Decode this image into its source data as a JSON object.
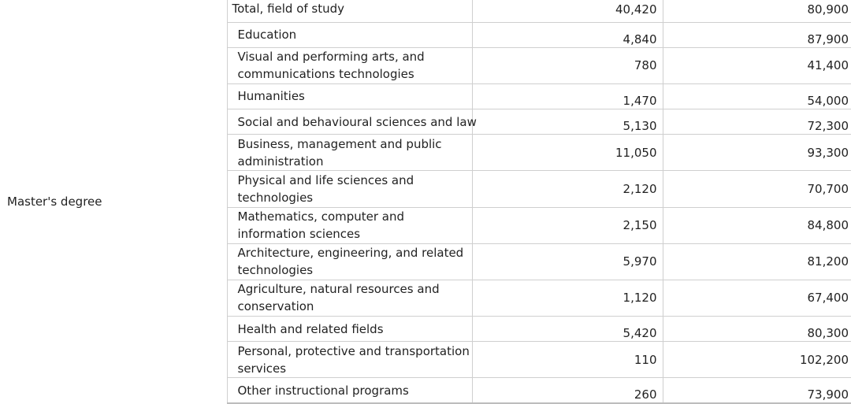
{
  "degree_label": "Master's degree",
  "rows": [
    {
      "field": "Total, field of study",
      "graduates": "40,420",
      "median_income": "80,900"
    },
    {
      "field": "Education",
      "graduates": "4,840",
      "median_income": "87,900"
    },
    {
      "field": "Visual and performing arts, and communications technologies",
      "graduates": "780",
      "median_income": "41,400"
    },
    {
      "field": "Humanities",
      "graduates": "1,470",
      "median_income": "54,000"
    },
    {
      "field": "Social and behavioural sciences and law",
      "graduates": "5,130",
      "median_income": "72,300"
    },
    {
      "field": "Business, management and public administration",
      "graduates": "11,050",
      "median_income": "93,300"
    },
    {
      "field": "Physical and life sciences and technologies",
      "graduates": "2,120",
      "median_income": "70,700"
    },
    {
      "field": "Mathematics, computer and information sciences",
      "graduates": "2,150",
      "median_income": "84,800"
    },
    {
      "field": "Architecture, engineering, and related technologies",
      "graduates": "5,970",
      "median_income": "81,200"
    },
    {
      "field": "Agriculture, natural resources and conservation",
      "graduates": "1,120",
      "median_income": "67,400"
    },
    {
      "field": "Health and related fields",
      "graduates": "5,420",
      "median_income": "80,300"
    },
    {
      "field": "Personal, protective and transportation services",
      "graduates": "110",
      "median_income": "102,200"
    },
    {
      "field": "Other instructional programs",
      "graduates": "260",
      "median_income": "73,900"
    }
  ]
}
